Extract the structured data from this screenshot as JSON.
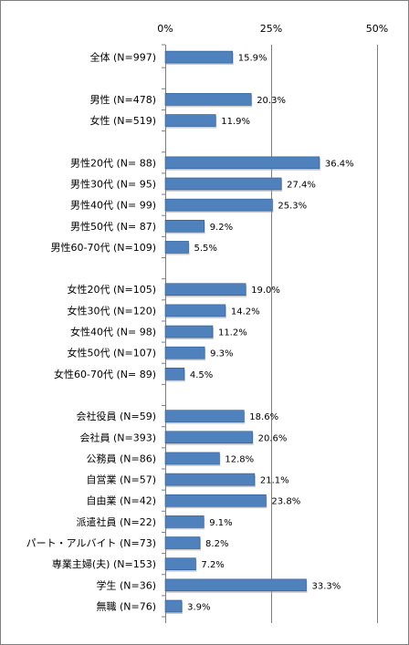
{
  "chart_data": {
    "type": "bar",
    "orientation": "horizontal",
    "x_ticks": [
      "0%",
      "25%",
      "50%"
    ],
    "xlim": [
      0,
      50
    ],
    "grid": true,
    "colors": {
      "bar": "#4f81bd",
      "bar_edge": "#2c5a93",
      "grid": "#7f7f7f"
    },
    "groups": [
      {
        "items": [
          {
            "label": "全体 (N=997)",
            "value": 15.9,
            "value_label": "15.9%"
          }
        ]
      },
      {
        "items": [
          {
            "label": "男性 (N=478)",
            "value": 20.3,
            "value_label": "20.3%"
          },
          {
            "label": "女性 (N=519)",
            "value": 11.9,
            "value_label": "11.9%"
          }
        ]
      },
      {
        "items": [
          {
            "label": "男性20代 (N=  88)",
            "value": 36.4,
            "value_label": "36.4%"
          },
          {
            "label": "男性30代 (N=  95)",
            "value": 27.4,
            "value_label": "27.4%"
          },
          {
            "label": "男性40代 (N=  99)",
            "value": 25.3,
            "value_label": "25.3%"
          },
          {
            "label": "男性50代 (N=  87)",
            "value": 9.2,
            "value_label": "9.2%"
          },
          {
            "label": "男性60-70代 (N=109)",
            "value": 5.5,
            "value_label": "5.5%"
          }
        ]
      },
      {
        "items": [
          {
            "label": "女性20代 (N=105)",
            "value": 19.0,
            "value_label": "19.0%"
          },
          {
            "label": "女性30代 (N=120)",
            "value": 14.2,
            "value_label": "14.2%"
          },
          {
            "label": "女性40代 (N=  98)",
            "value": 11.2,
            "value_label": "11.2%"
          },
          {
            "label": "女性50代 (N=107)",
            "value": 9.3,
            "value_label": "9.3%"
          },
          {
            "label": "女性60-70代 (N=  89)",
            "value": 4.5,
            "value_label": "4.5%"
          }
        ]
      },
      {
        "items": [
          {
            "label": "会社役員 (N=59)",
            "value": 18.6,
            "value_label": "18.6%"
          },
          {
            "label": "会社員 (N=393)",
            "value": 20.6,
            "value_label": "20.6%"
          },
          {
            "label": "公務員 (N=86)",
            "value": 12.8,
            "value_label": "12.8%"
          },
          {
            "label": "自営業 (N=57)",
            "value": 21.1,
            "value_label": "21.1%"
          },
          {
            "label": "自由業 (N=42)",
            "value": 23.8,
            "value_label": "23.8%"
          },
          {
            "label": "派遣社員 (N=22)",
            "value": 9.1,
            "value_label": "9.1%"
          },
          {
            "label": "パート・アルバイト (N=73)",
            "value": 8.2,
            "value_label": "8.2%"
          },
          {
            "label": "専業主婦(夫) (N=153)",
            "value": 7.2,
            "value_label": "7.2%"
          },
          {
            "label": "学生 (N=36)",
            "value": 33.3,
            "value_label": "33.3%"
          },
          {
            "label": "無職 (N=76)",
            "value": 3.9,
            "value_label": "3.9%"
          }
        ]
      }
    ]
  }
}
